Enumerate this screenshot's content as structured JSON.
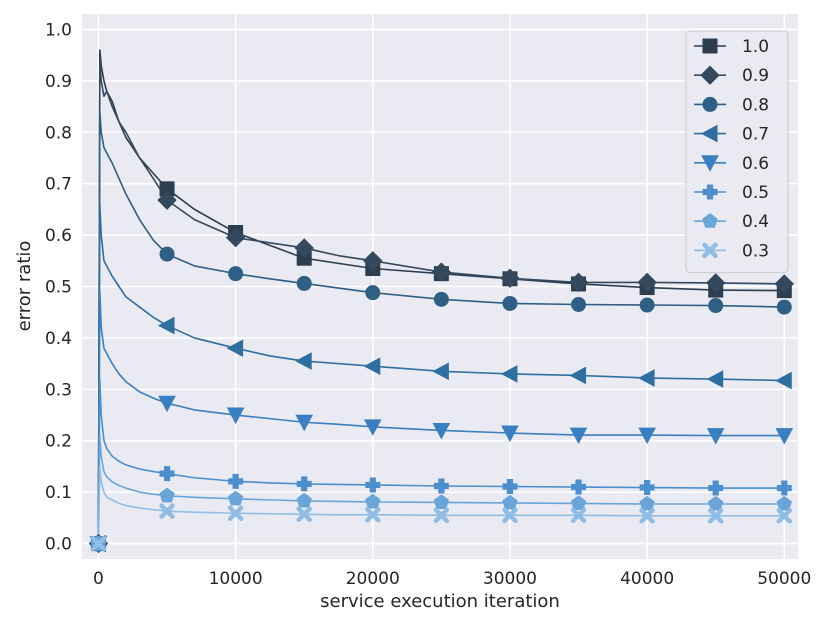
{
  "chart_data": {
    "type": "line",
    "title": "",
    "xlabel": "service execution iteration",
    "ylabel": "error ratio",
    "xlim": [
      -1200,
      51000
    ],
    "ylim": [
      -0.03,
      1.03
    ],
    "xticks": [
      0,
      10000,
      20000,
      30000,
      40000,
      50000
    ],
    "yticks": [
      0.0,
      0.1,
      0.2,
      0.3,
      0.4,
      0.5,
      0.6,
      0.7,
      0.8,
      0.9,
      1.0
    ],
    "xtick_labels": [
      "0",
      "10000",
      "20000",
      "30000",
      "40000",
      "50000"
    ],
    "ytick_labels": [
      "0.0",
      "0.1",
      "0.2",
      "0.3",
      "0.4",
      "0.5",
      "0.6",
      "0.7",
      "0.8",
      "0.9",
      "1.0"
    ],
    "grid": true,
    "legend_position": "top-right",
    "marker_x": [
      0,
      5000,
      10000,
      15000,
      20000,
      25000,
      30000,
      35000,
      40000,
      45000,
      50000
    ],
    "series": [
      {
        "name": "1.0",
        "color": "#2c3e50",
        "marker": "square",
        "x": [
          0,
          100,
          200,
          400,
          600,
          1000,
          1500,
          2000,
          3000,
          4000,
          5000,
          7000,
          10000,
          12500,
          15000,
          17500,
          20000,
          25000,
          30000,
          35000,
          40000,
          45000,
          50000
        ],
        "y": [
          0,
          0.96,
          0.93,
          0.9,
          0.88,
          0.86,
          0.82,
          0.79,
          0.75,
          0.72,
          0.69,
          0.65,
          0.605,
          0.58,
          0.555,
          0.545,
          0.535,
          0.525,
          0.515,
          0.505,
          0.498,
          0.493,
          0.492
        ]
      },
      {
        "name": "0.9",
        "color": "#34495e",
        "marker": "diamond",
        "x": [
          0,
          100,
          200,
          400,
          600,
          1000,
          1500,
          2000,
          3000,
          4000,
          5000,
          7000,
          10000,
          12500,
          15000,
          17500,
          20000,
          25000,
          30000,
          35000,
          40000,
          45000,
          50000
        ],
        "y": [
          0,
          0.94,
          0.9,
          0.87,
          0.88,
          0.85,
          0.82,
          0.8,
          0.75,
          0.71,
          0.668,
          0.63,
          0.595,
          0.585,
          0.575,
          0.56,
          0.55,
          0.528,
          0.516,
          0.508,
          0.508,
          0.507,
          0.505
        ]
      },
      {
        "name": "0.8",
        "color": "#2e5f84",
        "marker": "circle",
        "x": [
          0,
          100,
          200,
          400,
          600,
          1000,
          1500,
          2000,
          3000,
          4000,
          5000,
          7000,
          10000,
          12500,
          15000,
          17500,
          20000,
          25000,
          30000,
          35000,
          40000,
          45000,
          50000
        ],
        "y": [
          0,
          0.84,
          0.8,
          0.77,
          0.76,
          0.74,
          0.71,
          0.68,
          0.63,
          0.59,
          0.563,
          0.54,
          0.525,
          0.515,
          0.506,
          0.497,
          0.488,
          0.475,
          0.467,
          0.465,
          0.464,
          0.463,
          0.46
        ]
      },
      {
        "name": "0.7",
        "color": "#2f6ea0",
        "marker": "triangle-left",
        "x": [
          0,
          100,
          200,
          400,
          600,
          1000,
          1500,
          2000,
          3000,
          4000,
          5000,
          7000,
          10000,
          12500,
          15000,
          17500,
          20000,
          25000,
          30000,
          35000,
          40000,
          45000,
          50000
        ],
        "y": [
          0,
          0.66,
          0.6,
          0.55,
          0.54,
          0.52,
          0.5,
          0.48,
          0.46,
          0.44,
          0.424,
          0.4,
          0.38,
          0.365,
          0.355,
          0.35,
          0.345,
          0.335,
          0.33,
          0.327,
          0.322,
          0.32,
          0.317
        ]
      },
      {
        "name": "0.6",
        "color": "#3a7fbf",
        "marker": "triangle-down",
        "x": [
          0,
          100,
          200,
          400,
          600,
          1000,
          1500,
          2000,
          3000,
          4000,
          5000,
          7000,
          10000,
          12500,
          15000,
          17500,
          20000,
          25000,
          30000,
          35000,
          40000,
          45000,
          50000
        ],
        "y": [
          0,
          0.49,
          0.42,
          0.38,
          0.37,
          0.35,
          0.33,
          0.315,
          0.295,
          0.283,
          0.273,
          0.26,
          0.25,
          0.243,
          0.236,
          0.232,
          0.227,
          0.22,
          0.215,
          0.211,
          0.211,
          0.21,
          0.21
        ]
      },
      {
        "name": "0.5",
        "color": "#4c8fcf",
        "marker": "plus",
        "x": [
          0,
          100,
          200,
          400,
          600,
          1000,
          1500,
          2000,
          3000,
          4000,
          5000,
          7000,
          10000,
          12500,
          15000,
          17500,
          20000,
          25000,
          30000,
          35000,
          40000,
          45000,
          50000
        ],
        "y": [
          0,
          0.32,
          0.25,
          0.2,
          0.185,
          0.17,
          0.16,
          0.153,
          0.145,
          0.14,
          0.136,
          0.128,
          0.121,
          0.118,
          0.116,
          0.115,
          0.114,
          0.112,
          0.111,
          0.11,
          0.109,
          0.108,
          0.108
        ]
      },
      {
        "name": "0.4",
        "color": "#6aa5d9",
        "marker": "pentagon",
        "x": [
          0,
          100,
          200,
          400,
          600,
          1000,
          1500,
          2000,
          3000,
          4000,
          5000,
          7000,
          10000,
          12500,
          15000,
          17500,
          20000,
          25000,
          30000,
          35000,
          40000,
          45000,
          50000
        ],
        "y": [
          0,
          0.21,
          0.17,
          0.14,
          0.13,
          0.12,
          0.113,
          0.108,
          0.1,
          0.096,
          0.093,
          0.09,
          0.087,
          0.085,
          0.083,
          0.082,
          0.081,
          0.08,
          0.079,
          0.078,
          0.077,
          0.077,
          0.077
        ]
      },
      {
        "name": "0.3",
        "color": "#8fbde6",
        "marker": "x-filled",
        "x": [
          0,
          100,
          200,
          400,
          600,
          1000,
          1500,
          2000,
          3000,
          4000,
          5000,
          7000,
          10000,
          12500,
          15000,
          17500,
          20000,
          25000,
          30000,
          35000,
          40000,
          45000,
          50000
        ],
        "y": [
          0,
          0.15,
          0.12,
          0.1,
          0.09,
          0.085,
          0.078,
          0.074,
          0.069,
          0.066,
          0.063,
          0.061,
          0.059,
          0.058,
          0.057,
          0.056,
          0.056,
          0.055,
          0.055,
          0.055,
          0.054,
          0.054,
          0.054
        ]
      }
    ]
  }
}
